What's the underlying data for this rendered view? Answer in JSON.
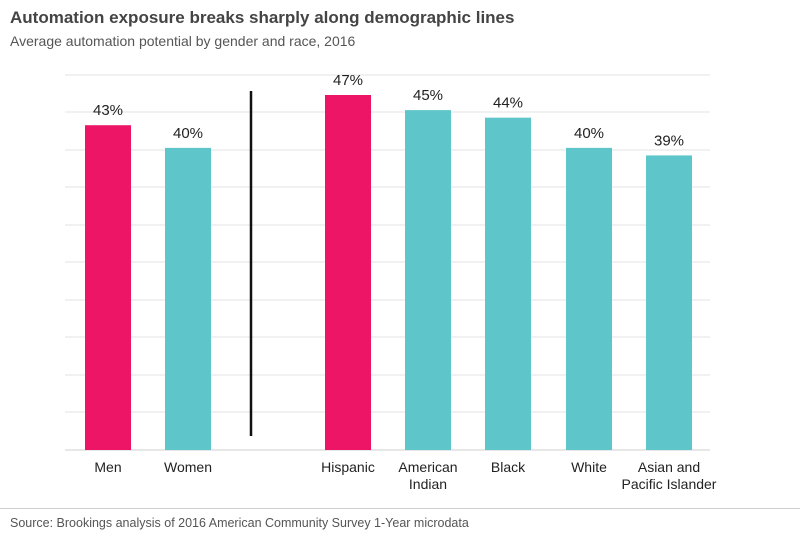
{
  "title": "Automation exposure breaks sharply along demographic lines",
  "subtitle": "Average automation potential by gender and race, 2016",
  "source": "Source: Brookings analysis of 2016 American Community Survey 1-Year microdata",
  "colors": {
    "highlight": "#ec1566",
    "base": "#5ec6cb",
    "grid": "#e3e3e3",
    "divider": "#111111"
  },
  "chart_data": {
    "type": "bar",
    "ylim": [
      0,
      50
    ],
    "grid": true,
    "unit": "%",
    "groups": [
      {
        "categories": [
          [
            "Men"
          ],
          [
            "Women"
          ]
        ],
        "values": [
          43,
          40
        ],
        "highlight": [
          true,
          false
        ]
      },
      {
        "categories": [
          [
            "Hispanic"
          ],
          [
            "American",
            "Indian"
          ],
          [
            "Black"
          ],
          [
            "White"
          ],
          [
            "Asian and",
            "Pacific Islander"
          ]
        ],
        "values": [
          47,
          45,
          44,
          40,
          39
        ],
        "highlight": [
          true,
          false,
          false,
          false,
          false
        ]
      }
    ]
  }
}
